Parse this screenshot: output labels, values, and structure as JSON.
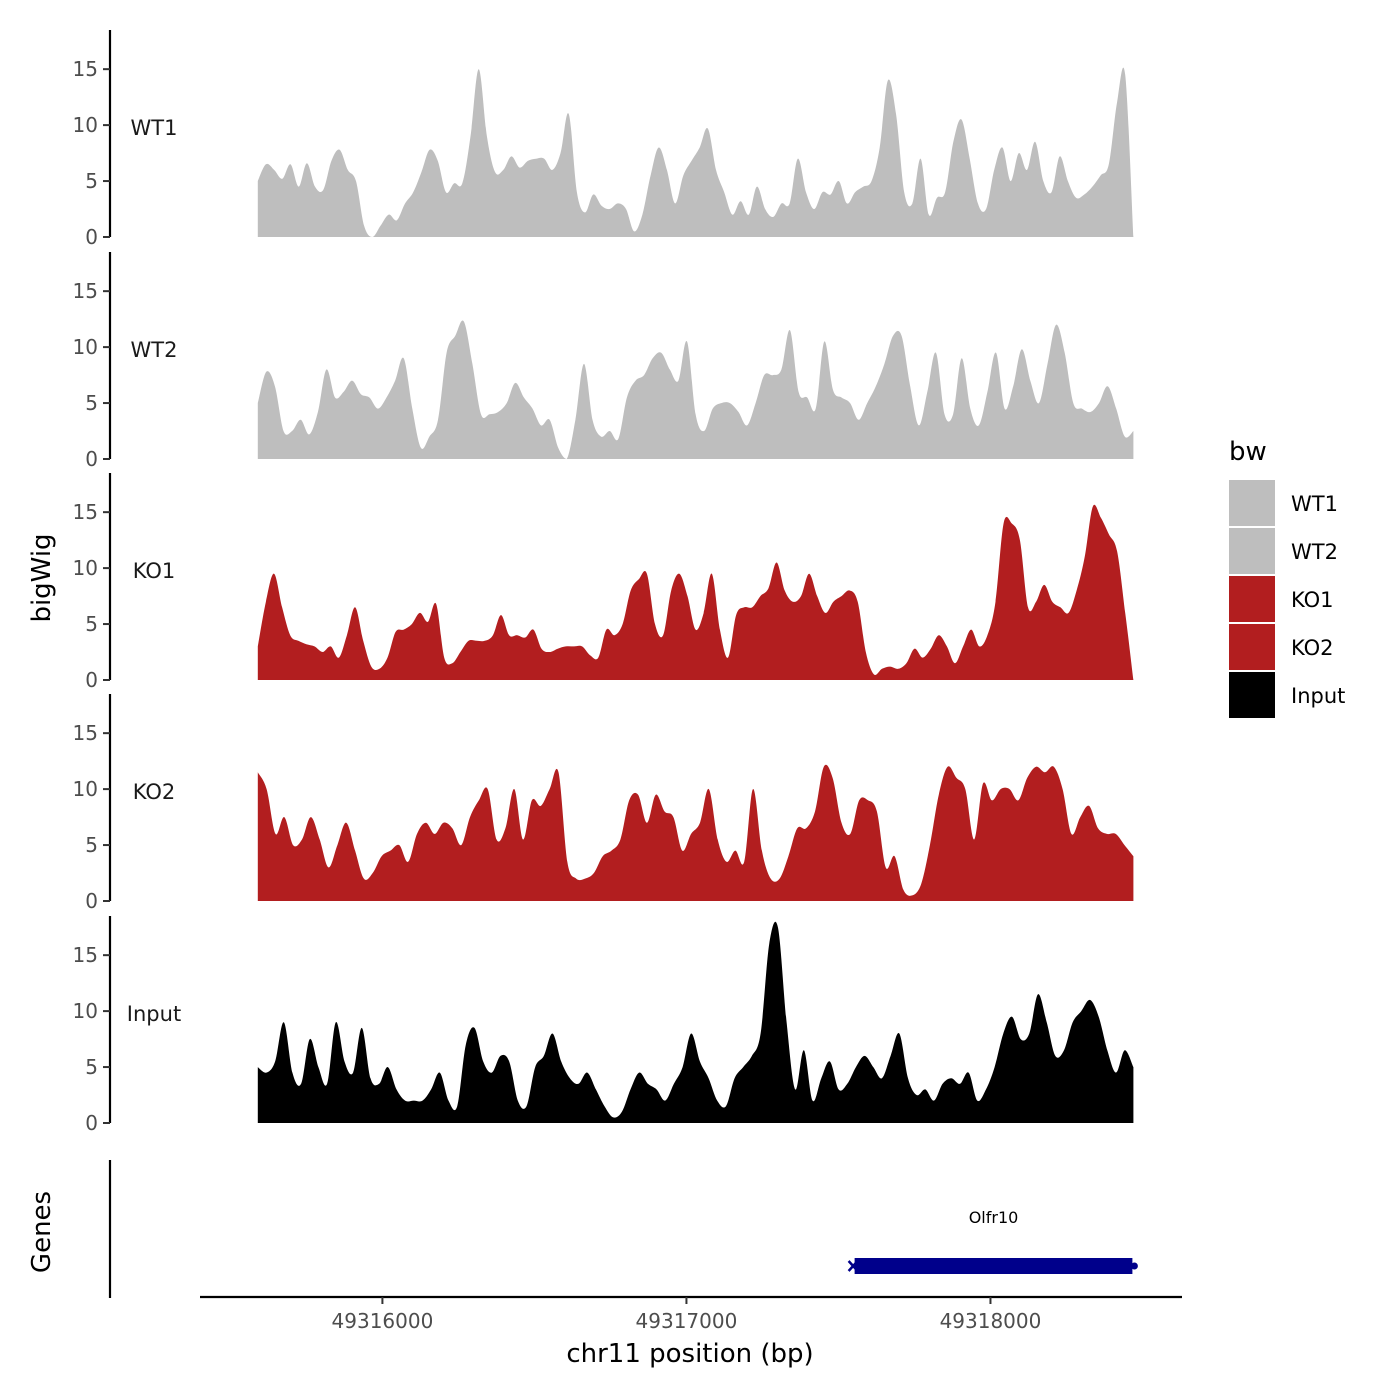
{
  "chart_data": {
    "type": "area",
    "ylabel": "bigWig",
    "xlabel": "chr11 position (bp)",
    "genes_label": "Genes",
    "xlim": [
      49315400,
      49318630
    ],
    "x_start": 49315590,
    "x_end": 49318470,
    "x_ticks": [
      49316000,
      49317000,
      49318000
    ],
    "x_tick_labels": [
      "49316000",
      "49317000",
      "49318000"
    ],
    "ylim": [
      0,
      18.5
    ],
    "y_ticks": [
      0,
      5,
      10,
      15
    ],
    "y_tick_labels": [
      "0",
      "5",
      "10",
      "15"
    ],
    "legend": {
      "title": "bw",
      "entries": [
        {
          "label": "WT1",
          "color": "#bebebe"
        },
        {
          "label": "WT2",
          "color": "#bebebe"
        },
        {
          "label": "KO1",
          "color": "#b21e1f"
        },
        {
          "label": "KO2",
          "color": "#b21e1f"
        },
        {
          "label": "Input",
          "color": "#000000"
        }
      ]
    },
    "series": [
      {
        "name": "WT1",
        "color": "#bebebe",
        "values": [
          5.0,
          6.5,
          6.0,
          5.2,
          6.5,
          4.5,
          6.6,
          4.5,
          4.2,
          6.8,
          7.8,
          6.0,
          5.0,
          1.0,
          0.0,
          1.0,
          2.0,
          1.5,
          3.0,
          4.0,
          5.8,
          7.8,
          6.8,
          4.0,
          4.8,
          4.8,
          9.0,
          15.0,
          9.0,
          5.8,
          6.0,
          7.2,
          6.2,
          6.8,
          7.0,
          7.0,
          6.0,
          7.5,
          11.0,
          4.0,
          2.2,
          3.8,
          2.8,
          2.5,
          3.0,
          2.5,
          0.5,
          2.0,
          5.5,
          8.0,
          6.0,
          3.0,
          5.5,
          6.8,
          8.0,
          9.7,
          6.0,
          4.0,
          2.0,
          3.2,
          2.0,
          4.5,
          2.5,
          1.8,
          3.0,
          3.0,
          7.0,
          4.0,
          2.5,
          4.0,
          3.8,
          5.0,
          3.0,
          4.0,
          4.5,
          5.0,
          8.0,
          14.0,
          11.0,
          4.0,
          3.0,
          7.0,
          2.0,
          3.5,
          4.0,
          8.5,
          10.5,
          7.0,
          3.0,
          2.5,
          6.0,
          8.0,
          5.0,
          7.5,
          6.0,
          8.5,
          5.0,
          4.0,
          7.2,
          5.0,
          3.5,
          3.8,
          4.5,
          5.5,
          6.5,
          12.0,
          14.5,
          0.0
        ]
      },
      {
        "name": "WT2",
        "color": "#bebebe",
        "values": [
          5.0,
          7.8,
          6.5,
          2.5,
          2.5,
          3.5,
          2.2,
          4.2,
          8.0,
          5.5,
          6.0,
          7.0,
          5.8,
          5.5,
          4.5,
          5.5,
          7.0,
          9.0,
          4.5,
          1.0,
          2.0,
          3.5,
          9.5,
          11.0,
          12.3,
          8.5,
          4.0,
          4.0,
          4.2,
          5.0,
          6.8,
          5.5,
          4.5,
          3.0,
          3.5,
          1.0,
          0.0,
          3.5,
          8.5,
          3.5,
          2.0,
          2.5,
          1.8,
          5.5,
          7.0,
          7.5,
          9.0,
          9.5,
          8.0,
          7.0,
          10.5,
          4.0,
          2.5,
          4.5,
          5.0,
          5.0,
          4.2,
          3.0,
          5.0,
          7.5,
          7.5,
          8.0,
          11.5,
          6.0,
          5.5,
          4.5,
          10.5,
          6.2,
          5.5,
          5.0,
          3.5,
          5.0,
          6.5,
          8.5,
          11.0,
          11.0,
          6.5,
          3.0,
          6.0,
          9.5,
          4.0,
          4.0,
          9.0,
          4.5,
          3.0,
          6.0,
          9.5,
          4.5,
          6.5,
          9.8,
          7.0,
          5.0,
          8.5,
          12.0,
          9.5,
          5.0,
          4.5,
          4.2,
          5.0,
          6.5,
          4.5,
          2.0,
          2.5
        ]
      },
      {
        "name": "KO1",
        "color": "#b21e1f",
        "values": [
          3.0,
          7.0,
          9.5,
          6.5,
          4.0,
          3.5,
          3.2,
          3.0,
          2.5,
          3.0,
          2.0,
          4.0,
          6.5,
          3.5,
          1.2,
          1.0,
          2.0,
          4.3,
          4.5,
          5.0,
          6.0,
          5.2,
          6.8,
          2.0,
          1.5,
          2.5,
          3.5,
          3.5,
          3.5,
          4.0,
          5.8,
          4.0,
          4.0,
          3.8,
          4.5,
          2.8,
          2.5,
          2.8,
          3.0,
          3.0,
          3.0,
          2.2,
          2.0,
          4.5,
          4.0,
          5.0,
          8.0,
          9.0,
          9.5,
          5.0,
          4.0,
          8.0,
          9.5,
          7.5,
          4.5,
          6.0,
          9.5,
          4.5,
          2.0,
          5.8,
          6.5,
          6.5,
          7.5,
          8.2,
          10.5,
          8.0,
          7.0,
          7.5,
          9.5,
          7.5,
          6.0,
          7.0,
          7.5,
          8.0,
          7.0,
          2.5,
          0.5,
          1.0,
          1.2,
          1.0,
          1.5,
          2.8,
          2.0,
          2.8,
          4.0,
          3.0,
          1.5,
          3.0,
          4.5,
          3.0,
          4.0,
          7.0,
          14.0,
          14.0,
          12.5,
          6.5,
          7.0,
          8.5,
          7.0,
          6.5,
          6.0,
          8.0,
          11.0,
          15.5,
          14.5,
          13.0,
          11.5,
          6.0,
          0.0
        ]
      },
      {
        "name": "KO2",
        "color": "#b21e1f",
        "values": [
          11.5,
          10.0,
          6.0,
          7.5,
          5.0,
          5.5,
          7.5,
          5.5,
          3.0,
          5.0,
          7.0,
          4.5,
          2.0,
          2.5,
          4.0,
          4.5,
          5.0,
          3.5,
          6.0,
          7.0,
          6.0,
          7.0,
          6.5,
          5.0,
          7.5,
          9.0,
          10.0,
          5.5,
          6.5,
          10.0,
          5.5,
          9.0,
          8.5,
          10.0,
          11.5,
          3.5,
          2.0,
          2.0,
          2.5,
          4.0,
          4.5,
          5.5,
          9.0,
          9.5,
          7.0,
          9.5,
          8.0,
          7.5,
          4.5,
          6.0,
          7.0,
          10.0,
          5.5,
          3.5,
          4.5,
          3.5,
          10.0,
          4.5,
          2.0,
          2.0,
          4.0,
          6.5,
          6.5,
          8.0,
          12.0,
          11.0,
          7.0,
          6.0,
          9.0,
          9.0,
          8.0,
          3.0,
          4.0,
          1.0,
          0.5,
          1.5,
          5.0,
          9.5,
          12.0,
          11.0,
          10.0,
          5.5,
          10.5,
          9.0,
          10.0,
          10.0,
          9.0,
          11.0,
          12.0,
          11.5,
          12.0,
          10.0,
          6.0,
          7.5,
          8.5,
          6.5,
          6.0,
          6.0,
          5.0,
          4.0
        ]
      },
      {
        "name": "Input",
        "color": "#000000",
        "values": [
          5.0,
          4.5,
          5.5,
          9.0,
          4.5,
          3.5,
          7.5,
          5.0,
          3.5,
          9.0,
          5.5,
          4.5,
          8.5,
          4.0,
          3.5,
          5.0,
          3.0,
          2.0,
          2.0,
          2.0,
          3.0,
          4.5,
          2.0,
          1.5,
          7.0,
          8.5,
          5.5,
          4.5,
          6.0,
          5.5,
          2.0,
          1.5,
          5.0,
          6.0,
          8.0,
          5.5,
          4.0,
          3.5,
          4.5,
          3.0,
          1.5,
          0.5,
          1.0,
          3.0,
          4.5,
          3.5,
          3.0,
          2.0,
          3.5,
          5.0,
          8.0,
          5.5,
          4.0,
          2.0,
          1.5,
          4.0,
          5.0,
          6.0,
          8.0,
          16.0,
          17.5,
          9.0,
          3.0,
          6.5,
          2.0,
          4.0,
          5.5,
          3.0,
          3.5,
          5.0,
          6.0,
          5.0,
          4.0,
          6.0,
          8.0,
          4.0,
          2.5,
          3.0,
          2.0,
          3.5,
          4.0,
          3.5,
          4.5,
          2.0,
          3.0,
          5.0,
          8.0,
          9.5,
          7.5,
          8.0,
          11.5,
          9.0,
          6.0,
          6.5,
          9.0,
          10.0,
          11.0,
          9.5,
          6.5,
          4.5,
          6.5,
          5.0
        ]
      }
    ],
    "gene": {
      "name": "Olfr10",
      "start": 49317540,
      "end": 49318480,
      "color": "#00008b"
    }
  }
}
